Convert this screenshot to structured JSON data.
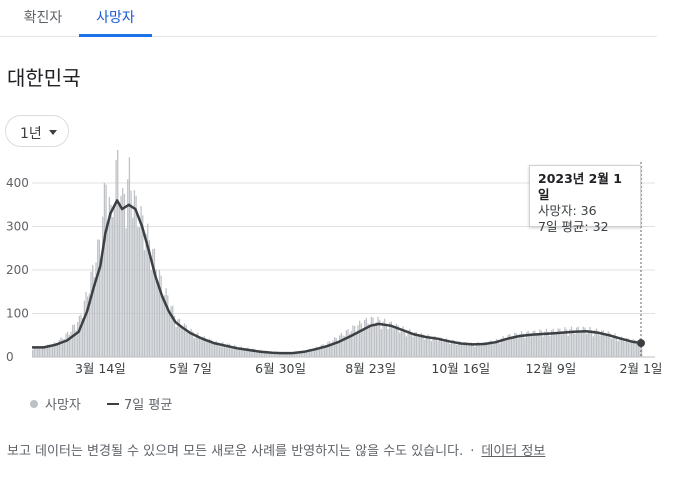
{
  "tabs": [
    {
      "label": "확진자",
      "active": false
    },
    {
      "label": "사망자",
      "active": true
    }
  ],
  "region": "대한민국",
  "range_selector": {
    "label": "1년"
  },
  "tooltip": {
    "date": "2023년 2월 1일",
    "deaths_line": "사망자: 36",
    "avg_line": "7일 평균: 32"
  },
  "legend": {
    "deaths": "사망자",
    "avg": "7일 평균"
  },
  "footnote": {
    "text": "보고 데이터는 변경될 수 있으며 모든 새로운 사례를 반영하지는 않을 수도 있습니다.",
    "separator": "·",
    "link": "데이터 정보"
  },
  "colors": {
    "bars": "#bdc1c6",
    "avg_line": "#3c4043",
    "accent": "#1a73e8",
    "grid": "#e0e0e0"
  },
  "chart_data": {
    "type": "bar",
    "series_types": {
      "사망자": "bar",
      "7일 평균": "line"
    },
    "x_tick_labels": [
      "3월 14일",
      "5월 7일",
      "6월 30일",
      "8월 23일",
      "10월 16일",
      "12월 9일",
      "2월 1일"
    ],
    "x_ticks": [
      "2022-03-14",
      "2022-05-07",
      "2022-06-30",
      "2022-08-23",
      "2022-10-16",
      "2022-12-09",
      "2023-02-01"
    ],
    "y_ticks": [
      0,
      100,
      200,
      300,
      400
    ],
    "ylim": [
      0,
      430
    ],
    "x_range": [
      "2022-02-01",
      "2023-02-01"
    ],
    "grid": true,
    "legend_position": "bottom-left",
    "series": [
      {
        "name": "사망자",
        "points": [
          [
            "2022-02-01",
            20
          ],
          [
            "2022-02-08",
            22
          ],
          [
            "2022-02-15",
            30
          ],
          [
            "2022-02-22",
            50
          ],
          [
            "2022-03-01",
            80
          ],
          [
            "2022-03-06",
            140
          ],
          [
            "2022-03-10",
            200
          ],
          [
            "2022-03-14",
            260
          ],
          [
            "2022-03-17",
            380
          ],
          [
            "2022-03-20",
            300
          ],
          [
            "2022-03-24",
            420
          ],
          [
            "2022-03-27",
            330
          ],
          [
            "2022-03-31",
            390
          ],
          [
            "2022-04-04",
            320
          ],
          [
            "2022-04-08",
            290
          ],
          [
            "2022-04-12",
            250
          ],
          [
            "2022-04-16",
            200
          ],
          [
            "2022-04-20",
            150
          ],
          [
            "2022-04-24",
            120
          ],
          [
            "2022-04-28",
            80
          ],
          [
            "2022-05-02",
            70
          ],
          [
            "2022-05-07",
            55
          ],
          [
            "2022-05-14",
            42
          ],
          [
            "2022-05-21",
            32
          ],
          [
            "2022-05-28",
            28
          ],
          [
            "2022-06-04",
            22
          ],
          [
            "2022-06-11",
            18
          ],
          [
            "2022-06-18",
            14
          ],
          [
            "2022-06-25",
            10
          ],
          [
            "2022-06-30",
            9
          ],
          [
            "2022-07-07",
            8
          ],
          [
            "2022-07-14",
            12
          ],
          [
            "2022-07-21",
            20
          ],
          [
            "2022-07-28",
            30
          ],
          [
            "2022-08-04",
            45
          ],
          [
            "2022-08-11",
            60
          ],
          [
            "2022-08-18",
            75
          ],
          [
            "2022-08-23",
            80
          ],
          [
            "2022-08-28",
            78
          ],
          [
            "2022-09-04",
            70
          ],
          [
            "2022-09-11",
            60
          ],
          [
            "2022-09-18",
            50
          ],
          [
            "2022-09-25",
            45
          ],
          [
            "2022-10-02",
            40
          ],
          [
            "2022-10-09",
            35
          ],
          [
            "2022-10-16",
            30
          ],
          [
            "2022-10-23",
            28
          ],
          [
            "2022-10-30",
            30
          ],
          [
            "2022-11-06",
            35
          ],
          [
            "2022-11-13",
            45
          ],
          [
            "2022-11-20",
            50
          ],
          [
            "2022-11-27",
            52
          ],
          [
            "2022-12-04",
            55
          ],
          [
            "2022-12-09",
            55
          ],
          [
            "2022-12-16",
            58
          ],
          [
            "2022-12-23",
            60
          ],
          [
            "2022-12-30",
            60
          ],
          [
            "2023-01-06",
            55
          ],
          [
            "2023-01-13",
            50
          ],
          [
            "2023-01-20",
            40
          ],
          [
            "2023-01-27",
            35
          ],
          [
            "2023-02-01",
            36
          ]
        ]
      },
      {
        "name": "7일 평균",
        "points": [
          [
            "2022-02-01",
            22
          ],
          [
            "2022-02-08",
            22
          ],
          [
            "2022-02-15",
            28
          ],
          [
            "2022-02-22",
            38
          ],
          [
            "2022-03-01",
            58
          ],
          [
            "2022-03-06",
            105
          ],
          [
            "2022-03-10",
            160
          ],
          [
            "2022-03-14",
            210
          ],
          [
            "2022-03-17",
            285
          ],
          [
            "2022-03-20",
            330
          ],
          [
            "2022-03-24",
            360
          ],
          [
            "2022-03-27",
            340
          ],
          [
            "2022-03-31",
            350
          ],
          [
            "2022-04-04",
            340
          ],
          [
            "2022-04-08",
            300
          ],
          [
            "2022-04-12",
            245
          ],
          [
            "2022-04-16",
            185
          ],
          [
            "2022-04-20",
            140
          ],
          [
            "2022-04-24",
            105
          ],
          [
            "2022-04-28",
            80
          ],
          [
            "2022-05-02",
            68
          ],
          [
            "2022-05-07",
            55
          ],
          [
            "2022-05-14",
            42
          ],
          [
            "2022-05-21",
            32
          ],
          [
            "2022-05-28",
            26
          ],
          [
            "2022-06-04",
            20
          ],
          [
            "2022-06-11",
            16
          ],
          [
            "2022-06-18",
            12
          ],
          [
            "2022-06-25",
            10
          ],
          [
            "2022-06-30",
            9
          ],
          [
            "2022-07-07",
            9
          ],
          [
            "2022-07-14",
            12
          ],
          [
            "2022-07-21",
            18
          ],
          [
            "2022-07-28",
            25
          ],
          [
            "2022-08-04",
            35
          ],
          [
            "2022-08-11",
            48
          ],
          [
            "2022-08-18",
            62
          ],
          [
            "2022-08-23",
            72
          ],
          [
            "2022-08-28",
            76
          ],
          [
            "2022-09-04",
            72
          ],
          [
            "2022-09-11",
            62
          ],
          [
            "2022-09-18",
            52
          ],
          [
            "2022-09-25",
            46
          ],
          [
            "2022-10-02",
            42
          ],
          [
            "2022-10-09",
            36
          ],
          [
            "2022-10-16",
            31
          ],
          [
            "2022-10-23",
            29
          ],
          [
            "2022-10-30",
            30
          ],
          [
            "2022-11-06",
            34
          ],
          [
            "2022-11-13",
            42
          ],
          [
            "2022-11-20",
            48
          ],
          [
            "2022-11-27",
            51
          ],
          [
            "2022-12-04",
            53
          ],
          [
            "2022-12-09",
            54
          ],
          [
            "2022-12-16",
            56
          ],
          [
            "2022-12-23",
            58
          ],
          [
            "2022-12-30",
            59
          ],
          [
            "2023-01-06",
            56
          ],
          [
            "2023-01-13",
            50
          ],
          [
            "2023-01-20",
            42
          ],
          [
            "2023-01-27",
            35
          ],
          [
            "2023-02-01",
            32
          ]
        ]
      }
    ]
  }
}
